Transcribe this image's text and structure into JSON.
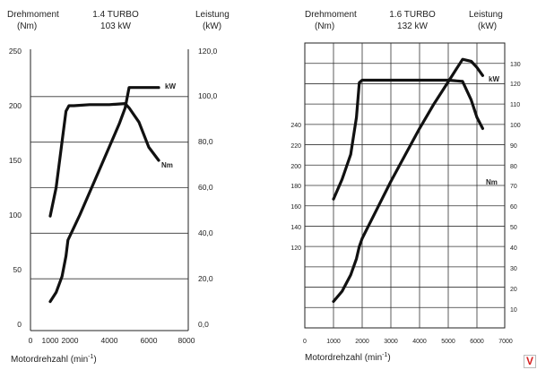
{
  "colors": {
    "curve": "#111111",
    "grid": "#333333",
    "badge": "#d62020"
  },
  "logo": {
    "label": "V"
  },
  "chart_data": [
    {
      "type": "line",
      "title": "1.4 TURBO",
      "subtitle": "103 kW",
      "left_axis": {
        "label": "Drehmoment",
        "unit": "(Nm)",
        "range": [
          0,
          250
        ],
        "ticks": [
          "0",
          "50",
          "100",
          "150",
          "200",
          "250"
        ]
      },
      "right_axis": {
        "label": "Leistung",
        "unit": "(kW)",
        "range": [
          0,
          120
        ],
        "ticks": [
          "0,0",
          "20,0",
          "40,0",
          "60,0",
          "80,0",
          "100,0",
          "120,0"
        ]
      },
      "x_axis": {
        "label": "Motordrehzahl (min",
        "label_sup": "-1",
        "label_suffix": ")",
        "range": [
          0,
          8000
        ],
        "ticks": [
          "0",
          "1000",
          "2000",
          "4000",
          "6000",
          "8000"
        ]
      },
      "grid": "horizontal lines at right-axis ticks",
      "series": [
        {
          "name": "Nm",
          "axis": "left",
          "x": [
            1000,
            1300,
            1800,
            1950,
            2200,
            3000,
            4000,
            4800,
            5000,
            5500,
            6000,
            6500
          ],
          "y": [
            99,
            125,
            195,
            200,
            200,
            201,
            201,
            202,
            198,
            185,
            162,
            150
          ]
        },
        {
          "name": "kW",
          "axis": "right",
          "x": [
            1000,
            1300,
            1600,
            1800,
            1900,
            2500,
            3000,
            3500,
            4000,
            4500,
            4800,
            5000,
            5500,
            6000,
            6500
          ],
          "y": [
            10,
            14,
            21,
            30,
            37,
            48,
            58,
            68,
            78,
            88,
            95,
            104,
            104,
            104,
            104
          ]
        }
      ]
    },
    {
      "type": "line",
      "title": "1.6 TURBO",
      "subtitle": "132 kW",
      "left_axis": {
        "label": "Drehmoment",
        "unit": "(Nm)",
        "range": [
          30,
          260
        ],
        "ticks": [
          "120",
          "140",
          "160",
          "180",
          "200",
          "220",
          "240"
        ]
      },
      "right_axis": {
        "label": "Leistung",
        "unit": "(kW)",
        "range": [
          0,
          140
        ],
        "ticks": [
          "10",
          "20",
          "30",
          "40",
          "50",
          "60",
          "70",
          "80",
          "90",
          "100",
          "110",
          "120",
          "130"
        ]
      },
      "x_axis": {
        "label": "Motordrehzahl (min",
        "label_sup": "-1",
        "label_suffix": ")",
        "range": [
          0,
          7000
        ],
        "ticks": [
          "0",
          "1000",
          "2000",
          "3000",
          "4000",
          "5000",
          "6000",
          "7000"
        ]
      },
      "grid": "full grid",
      "series": [
        {
          "name": "Nm",
          "axis": "left",
          "x": [
            1000,
            1300,
            1600,
            1800,
            1900,
            2000,
            3000,
            4000,
            5000,
            5500,
            5800,
            6000,
            6200
          ],
          "y": [
            134,
            150,
            170,
            200,
            228,
            230,
            230,
            230,
            230,
            229,
            214,
            200,
            191
          ]
        },
        {
          "name": "kW",
          "axis": "right",
          "x": [
            1000,
            1300,
            1600,
            1800,
            1900,
            2000,
            2500,
            3000,
            3500,
            4000,
            4500,
            5000,
            5500,
            5800,
            6000,
            6200
          ],
          "y": [
            13,
            18,
            26,
            34,
            40,
            44,
            58,
            72,
            85,
            98,
            110,
            121,
            132,
            131,
            128,
            124
          ]
        }
      ]
    }
  ]
}
